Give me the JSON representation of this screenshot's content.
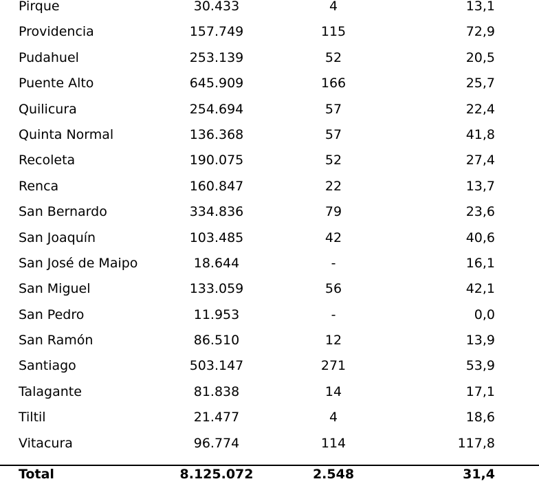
{
  "rows": [
    {
      "name": "Pirque",
      "pop": "30.433",
      "count": "4",
      "rate": "13,1"
    },
    {
      "name": "Providencia",
      "pop": "157.749",
      "count": "115",
      "rate": "72,9"
    },
    {
      "name": "Pudahuel",
      "pop": "253.139",
      "count": "52",
      "rate": "20,5"
    },
    {
      "name": "Puente Alto",
      "pop": "645.909",
      "count": "166",
      "rate": "25,7"
    },
    {
      "name": "Quilicura",
      "pop": "254.694",
      "count": "57",
      "rate": "22,4"
    },
    {
      "name": "Quinta Normal",
      "pop": "136.368",
      "count": "57",
      "rate": "41,8"
    },
    {
      "name": "Recoleta",
      "pop": "190.075",
      "count": "52",
      "rate": "27,4"
    },
    {
      "name": "Renca",
      "pop": "160.847",
      "count": "22",
      "rate": "13,7"
    },
    {
      "name": "San Bernardo",
      "pop": "334.836",
      "count": "79",
      "rate": "23,6"
    },
    {
      "name": "San Joaquín",
      "pop": "103.485",
      "count": "42",
      "rate": "40,6"
    },
    {
      "name": "San José de Maipo",
      "pop": "18.644",
      "count": "-",
      "rate": "16,1"
    },
    {
      "name": "San Miguel",
      "pop": "133.059",
      "count": "56",
      "rate": "42,1"
    },
    {
      "name": "San Pedro",
      "pop": "11.953",
      "count": "-",
      "rate": "0,0"
    },
    {
      "name": "San Ramón",
      "pop": "86.510",
      "count": "12",
      "rate": "13,9"
    },
    {
      "name": "Santiago",
      "pop": "503.147",
      "count": "271",
      "rate": "53,9"
    },
    {
      "name": "Talagante",
      "pop": "81.838",
      "count": "14",
      "rate": "17,1"
    },
    {
      "name": "Tiltil",
      "pop": "21.477",
      "count": "4",
      "rate": "18,6"
    },
    {
      "name": "Vitacura",
      "pop": "96.774",
      "count": "114",
      "rate": "117,8"
    }
  ],
  "total": {
    "name": "Total",
    "pop": "8.125.072",
    "count": "2.548",
    "rate": "31,4"
  }
}
